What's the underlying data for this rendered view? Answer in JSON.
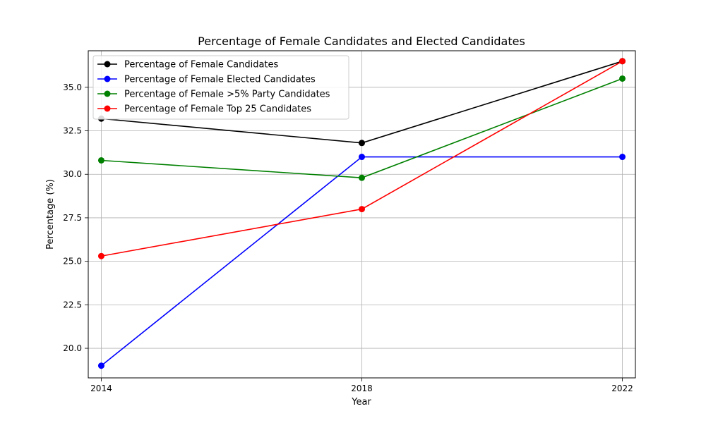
{
  "chart_data": {
    "type": "line",
    "title": "Percentage of Female Candidates and Elected Candidates",
    "xlabel": "Year",
    "ylabel": "Percentage (%)",
    "x": [
      "2014",
      "2018",
      "2022"
    ],
    "xlim": [
      2013.8,
      2022.2
    ],
    "ylim": [
      18.3,
      37.1
    ],
    "yticks": [
      "20.0",
      "22.5",
      "25.0",
      "27.5",
      "30.0",
      "32.5",
      "35.0"
    ],
    "grid": true,
    "legend_position": "upper-left",
    "series": [
      {
        "name": "Percentage of Female Candidates",
        "color": "#000000",
        "values": [
          33.2,
          31.8,
          36.5
        ]
      },
      {
        "name": "Percentage of Female Elected Candidates",
        "color": "#0000ff",
        "values": [
          19.0,
          31.0,
          31.0
        ]
      },
      {
        "name": "Percentage of Female >5% Party Candidates",
        "color": "#008000",
        "values": [
          30.8,
          29.8,
          35.5
        ]
      },
      {
        "name": "Percentage of Female Top 25 Candidates",
        "color": "#ff0000",
        "values": [
          25.3,
          28.0,
          36.5
        ]
      }
    ]
  }
}
